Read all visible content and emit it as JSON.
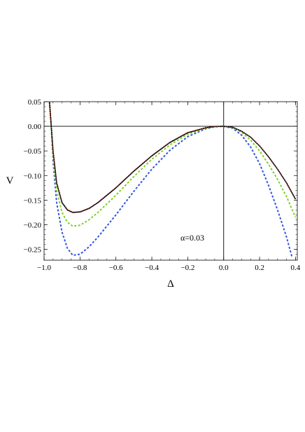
{
  "chart_data": {
    "type": "line",
    "title": "",
    "xlabel": "Δ",
    "ylabel": "V",
    "xlim": [
      -1.0,
      0.41
    ],
    "ylim": [
      -0.272,
      0.05
    ],
    "x_ticks": [
      -1.0,
      -0.8,
      -0.6,
      -0.4,
      -0.2,
      0.0,
      0.2,
      0.4
    ],
    "x_tick_labels": [
      "−1.0",
      "−0.8",
      "−0.6",
      "−0.4",
      "−0.2",
      "0.0",
      "0.2",
      "0.4"
    ],
    "y_ticks": [
      0.05,
      0.0,
      -0.05,
      -0.1,
      -0.15,
      -0.2,
      -0.25
    ],
    "y_tick_labels": [
      "0.05",
      "0.00",
      "−0.05",
      "−0.10",
      "−0.15",
      "−0.20",
      "−0.25"
    ],
    "annotation": "α=0.03",
    "grid": false,
    "series": [
      {
        "color": "#000000",
        "style": "solid",
        "x": [
          -0.97,
          -0.96,
          -0.95,
          -0.93,
          -0.9,
          -0.87,
          -0.84,
          -0.8,
          -0.75,
          -0.7,
          -0.6,
          -0.5,
          -0.4,
          -0.3,
          -0.2,
          -0.1,
          -0.05,
          0.0,
          0.05,
          0.1,
          0.15,
          0.2,
          0.25,
          0.3,
          0.35,
          0.4
        ],
        "y": [
          0.05,
          0.0,
          -0.05,
          -0.115,
          -0.155,
          -0.17,
          -0.175,
          -0.174,
          -0.167,
          -0.155,
          -0.125,
          -0.091,
          -0.06,
          -0.033,
          -0.013,
          -0.003,
          -0.0005,
          0.0,
          -0.002,
          -0.01,
          -0.022,
          -0.04,
          -0.062,
          -0.087,
          -0.115,
          -0.148
        ]
      },
      {
        "color": "#d84c4c",
        "style": "dotted",
        "x": [
          -0.97,
          -0.96,
          -0.95,
          -0.93,
          -0.9,
          -0.87,
          -0.84,
          -0.8,
          -0.75,
          -0.7,
          -0.6,
          -0.5,
          -0.4,
          -0.3,
          -0.2,
          -0.1,
          -0.05,
          0.0,
          0.05,
          0.1,
          0.15,
          0.2,
          0.25,
          0.3,
          0.35,
          0.4
        ],
        "y": [
          0.05,
          0.0,
          -0.05,
          -0.114,
          -0.154,
          -0.169,
          -0.174,
          -0.173,
          -0.166,
          -0.154,
          -0.124,
          -0.09,
          -0.059,
          -0.032,
          -0.012,
          -0.003,
          -0.0005,
          0.0,
          -0.002,
          -0.01,
          -0.022,
          -0.04,
          -0.062,
          -0.087,
          -0.115,
          -0.147
        ]
      },
      {
        "color": "#7ed321",
        "style": "dashed",
        "x": [
          -0.97,
          -0.96,
          -0.95,
          -0.93,
          -0.9,
          -0.87,
          -0.84,
          -0.8,
          -0.75,
          -0.7,
          -0.6,
          -0.5,
          -0.4,
          -0.3,
          -0.2,
          -0.1,
          -0.05,
          0.0,
          0.05,
          0.1,
          0.15,
          0.2,
          0.25,
          0.3,
          0.35,
          0.4
        ],
        "y": [
          0.05,
          0.0,
          -0.06,
          -0.13,
          -0.175,
          -0.195,
          -0.203,
          -0.201,
          -0.19,
          -0.175,
          -0.14,
          -0.102,
          -0.067,
          -0.038,
          -0.016,
          -0.004,
          -0.001,
          0.0,
          -0.003,
          -0.012,
          -0.028,
          -0.05,
          -0.077,
          -0.108,
          -0.143,
          -0.185
        ]
      },
      {
        "color": "#3355dd",
        "style": "dashed",
        "x": [
          -0.97,
          -0.96,
          -0.95,
          -0.93,
          -0.9,
          -0.87,
          -0.84,
          -0.8,
          -0.75,
          -0.7,
          -0.6,
          -0.5,
          -0.4,
          -0.3,
          -0.2,
          -0.1,
          -0.05,
          0.0,
          0.05,
          0.1,
          0.15,
          0.2,
          0.25,
          0.3,
          0.35,
          0.38
        ],
        "y": [
          0.05,
          0.0,
          -0.07,
          -0.155,
          -0.215,
          -0.248,
          -0.262,
          -0.26,
          -0.245,
          -0.225,
          -0.18,
          -0.132,
          -0.087,
          -0.049,
          -0.021,
          -0.005,
          -0.001,
          0.0,
          -0.004,
          -0.018,
          -0.042,
          -0.076,
          -0.12,
          -0.17,
          -0.225,
          -0.265
        ]
      }
    ]
  }
}
